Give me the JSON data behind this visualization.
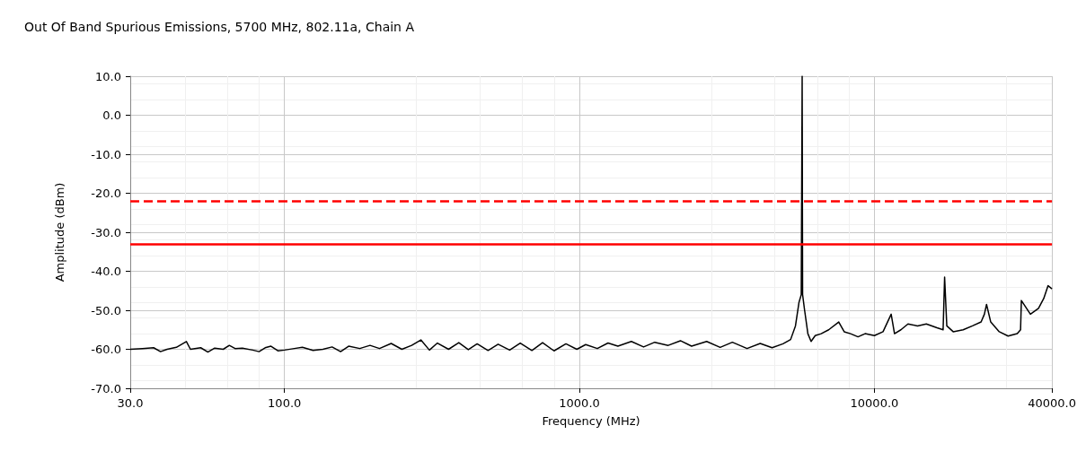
{
  "chart_data": {
    "type": "line",
    "title": "Out Of Band Spurious Emissions, 5700 MHz, 802.11a, Chain A",
    "xlabel": "Frequency (MHz)",
    "ylabel": "Amplitude (dBm)",
    "log": "x",
    "grid": true,
    "marker": "none",
    "line_style": "solid",
    "xlim": [
      30,
      40000
    ],
    "xticks": [
      {
        "value": 30,
        "label": "30.0"
      },
      {
        "value": 100,
        "label": "100.0"
      },
      {
        "value": 1000,
        "label": "1000.0"
      },
      {
        "value": 10000,
        "label": "10000.0"
      },
      {
        "value": 40000,
        "label": "40000.0"
      }
    ],
    "ylim": [
      -70,
      10
    ],
    "yticks": [
      {
        "value": -70,
        "label": "-70.0"
      },
      {
        "value": -60,
        "label": "-60.0"
      },
      {
        "value": -50,
        "label": "-50.0"
      },
      {
        "value": -40,
        "label": "-40.0"
      },
      {
        "value": -30,
        "label": "-30.0"
      },
      {
        "value": -20,
        "label": "-20.0"
      },
      {
        "value": -10,
        "label": "-10.0"
      },
      {
        "value": 0,
        "label": "0.0"
      },
      {
        "value": 10,
        "label": "10.0"
      }
    ],
    "ref_lines": [
      {
        "axis": "y",
        "value": -22,
        "label": null,
        "color": "#ff0000",
        "line_style": "dashed"
      },
      {
        "axis": "y",
        "value": -33,
        "label": null,
        "color": "#ff0000",
        "line_style": "solid"
      }
    ],
    "series": [
      {
        "color": "#000000",
        "x": [
          30,
          33,
          36,
          38,
          40,
          43,
          46.5,
          48,
          52,
          55,
          58,
          62,
          65,
          68,
          72,
          78,
          82,
          86,
          90,
          95,
          100,
          108,
          115,
          125,
          135,
          145,
          155,
          165,
          180,
          195,
          210,
          230,
          250,
          270,
          290,
          310,
          330,
          360,
          390,
          420,
          450,
          490,
          530,
          580,
          630,
          690,
          750,
          820,
          900,
          980,
          1050,
          1150,
          1250,
          1350,
          1500,
          1650,
          1800,
          2000,
          2200,
          2400,
          2700,
          3000,
          3300,
          3700,
          4100,
          4500,
          4900,
          5200,
          5400,
          5550,
          5650,
          5690,
          5710,
          5800,
          5950,
          6100,
          6300,
          6600,
          7000,
          7570,
          7900,
          8300,
          8800,
          9300,
          10000,
          10700,
          11400,
          11700,
          12300,
          13000,
          14000,
          15000,
          16300,
          17100,
          17300,
          17600,
          18500,
          20000,
          21500,
          23000,
          23600,
          24000,
          24800,
          26500,
          28400,
          30500,
          31300,
          31500,
          33800,
          36000,
          37500,
          38800,
          40000
        ],
        "values": [
          -60,
          -59.8,
          -59.6,
          -60.6,
          -60,
          -59.5,
          -58,
          -60,
          -59.6,
          -60.7,
          -59.7,
          -60,
          -59,
          -59.8,
          -59.7,
          -60.2,
          -60.6,
          -59.6,
          -59.2,
          -60.4,
          -60.2,
          -59.8,
          -59.5,
          -60.3,
          -60,
          -59.4,
          -60.6,
          -59.2,
          -59.8,
          -59,
          -59.8,
          -58.5,
          -60,
          -59,
          -57.6,
          -60.2,
          -58.4,
          -60,
          -58.3,
          -60.1,
          -58.6,
          -60.3,
          -58.7,
          -60.2,
          -58.4,
          -60.3,
          -58.3,
          -60.4,
          -58.6,
          -60,
          -58.8,
          -59.8,
          -58.4,
          -59.2,
          -58,
          -59.4,
          -58.2,
          -59,
          -57.8,
          -59.2,
          -58,
          -59.5,
          -58.2,
          -59.8,
          -58.5,
          -59.6,
          -58.6,
          -57.5,
          -54,
          -48,
          -46,
          10,
          -46,
          -50,
          -56,
          -58,
          -56.5,
          -56,
          -55,
          -53,
          -55.5,
          -56,
          -56.8,
          -56,
          -56.5,
          -55.5,
          -51,
          -56,
          -55,
          -53.5,
          -54,
          -53.5,
          -54.5,
          -55,
          -41.5,
          -54,
          -55.5,
          -55,
          -54,
          -53,
          -51,
          -48.5,
          -53,
          -55.5,
          -56.6,
          -56,
          -55,
          -47.5,
          -51,
          -49.5,
          -47,
          -43.7,
          -44.5
        ]
      }
    ]
  }
}
